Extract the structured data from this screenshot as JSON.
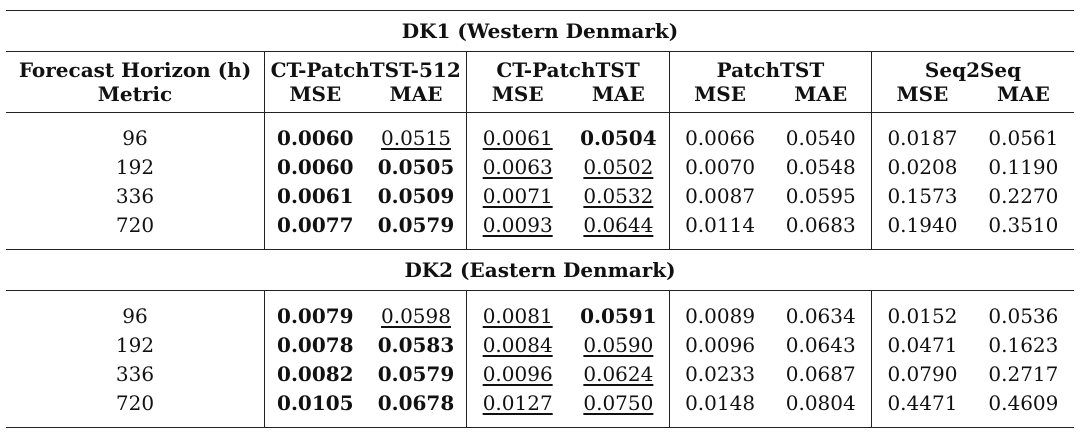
{
  "table": {
    "sections": [
      {
        "title": "DK1 (Western Denmark)",
        "header": {
          "col_label": "Forecast Horizon (h)",
          "row_label": "Metric",
          "models": [
            "CT-PatchTST-512",
            "CT-PatchTST",
            "PatchTST",
            "Seq2Seq"
          ],
          "metrics": [
            "MSE",
            "MAE"
          ]
        },
        "rows": [
          {
            "horizon": "96",
            "values": [
              "0.0060",
              "0.0515",
              "0.0061",
              "0.0504",
              "0.0066",
              "0.0540",
              "0.0187",
              "0.0561"
            ]
          },
          {
            "horizon": "192",
            "values": [
              "0.0060",
              "0.0505",
              "0.0063",
              "0.0502",
              "0.0070",
              "0.0548",
              "0.0208",
              "0.1190"
            ]
          },
          {
            "horizon": "336",
            "values": [
              "0.0061",
              "0.0509",
              "0.0071",
              "0.0532",
              "0.0087",
              "0.0595",
              "0.1573",
              "0.2270"
            ]
          },
          {
            "horizon": "720",
            "values": [
              "0.0077",
              "0.0579",
              "0.0093",
              "0.0644",
              "0.0114",
              "0.0683",
              "0.1940",
              "0.3510"
            ]
          }
        ]
      },
      {
        "title": "DK2 (Eastern Denmark)",
        "rows": [
          {
            "horizon": "96",
            "values": [
              "0.0079",
              "0.0598",
              "0.0081",
              "0.0591",
              "0.0089",
              "0.0634",
              "0.0152",
              "0.0536"
            ]
          },
          {
            "horizon": "192",
            "values": [
              "0.0078",
              "0.0583",
              "0.0084",
              "0.0590",
              "0.0096",
              "0.0643",
              "0.0471",
              "0.1623"
            ]
          },
          {
            "horizon": "336",
            "values": [
              "0.0082",
              "0.0579",
              "0.0096",
              "0.0624",
              "0.0233",
              "0.0687",
              "0.0790",
              "0.2717"
            ]
          },
          {
            "horizon": "720",
            "values": [
              "0.0105",
              "0.0678",
              "0.0127",
              "0.0750",
              "0.0148",
              "0.0804",
              "0.4471",
              "0.4609"
            ]
          }
        ]
      }
    ],
    "styling": {
      "DK1": [
        [
          "bold",
          "underline",
          "underline",
          "bold",
          "",
          "",
          "",
          ""
        ],
        [
          "bold",
          "bold",
          "underline",
          "underline",
          "",
          "",
          "",
          ""
        ],
        [
          "bold",
          "bold",
          "underline",
          "underline",
          "",
          "",
          "",
          ""
        ],
        [
          "bold",
          "bold",
          "underline",
          "underline",
          "",
          "",
          "",
          ""
        ]
      ],
      "DK2": [
        [
          "bold",
          "underline",
          "underline",
          "bold",
          "",
          "",
          "",
          ""
        ],
        [
          "bold",
          "bold",
          "underline",
          "underline",
          "",
          "",
          "",
          ""
        ],
        [
          "bold",
          "bold",
          "underline",
          "underline",
          "",
          "",
          "",
          ""
        ],
        [
          "bold",
          "bold",
          "underline",
          "underline",
          "",
          "",
          "",
          ""
        ]
      ]
    }
  }
}
